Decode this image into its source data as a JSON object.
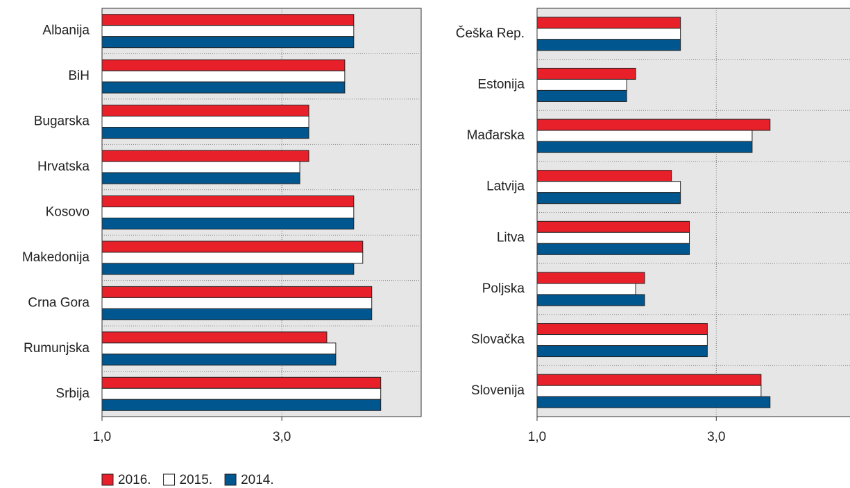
{
  "legend": [
    {
      "name": "2016.",
      "color": "#e8202a"
    },
    {
      "name": "2015.",
      "color": "#ffffff"
    },
    {
      "name": "2014.",
      "color": "#00568f"
    }
  ],
  "chart_data": [
    {
      "type": "bar",
      "orientation": "horizontal",
      "categories": [
        "Albanija",
        "BiH",
        "Bugarska",
        "Hrvatska",
        "Kosovo",
        "Makedonija",
        "Crna Gora",
        "Rumunjska",
        "Srbija"
      ],
      "series": [
        {
          "values": [
            3.8,
            3.7,
            3.3,
            3.3,
            3.8,
            3.9,
            4.0,
            3.5,
            4.1
          ]
        },
        {
          "values": [
            3.8,
            3.7,
            3.3,
            3.2,
            3.8,
            3.9,
            4.0,
            3.6,
            4.1
          ]
        },
        {
          "values": [
            3.8,
            3.7,
            3.3,
            3.2,
            3.8,
            3.8,
            4.0,
            3.6,
            4.1
          ]
        }
      ],
      "xlim": [
        1,
        4.55
      ],
      "xticks": [
        {
          "value": 1,
          "label": "1,0"
        },
        {
          "value": 3,
          "label": "3,0"
        }
      ],
      "grid": true
    },
    {
      "type": "bar",
      "orientation": "horizontal",
      "categories": [
        "Češka Rep.",
        "Estonija",
        "Mađarska",
        "Latvija",
        "Litva",
        "Poljska",
        "Slovačka",
        "Slovenija"
      ],
      "series": [
        {
          "values": [
            2.6,
            2.1,
            3.6,
            2.5,
            2.7,
            2.2,
            2.9,
            3.5
          ]
        },
        {
          "values": [
            2.6,
            2.0,
            3.4,
            2.6,
            2.7,
            2.1,
            2.9,
            3.5
          ]
        },
        {
          "values": [
            2.6,
            2.0,
            3.4,
            2.6,
            2.7,
            2.2,
            2.9,
            3.6
          ]
        }
      ],
      "xlim": [
        1,
        4.5
      ],
      "xticks": [
        {
          "value": 1,
          "label": "1,0"
        },
        {
          "value": 3,
          "label": "3,0"
        }
      ],
      "grid": true
    }
  ]
}
